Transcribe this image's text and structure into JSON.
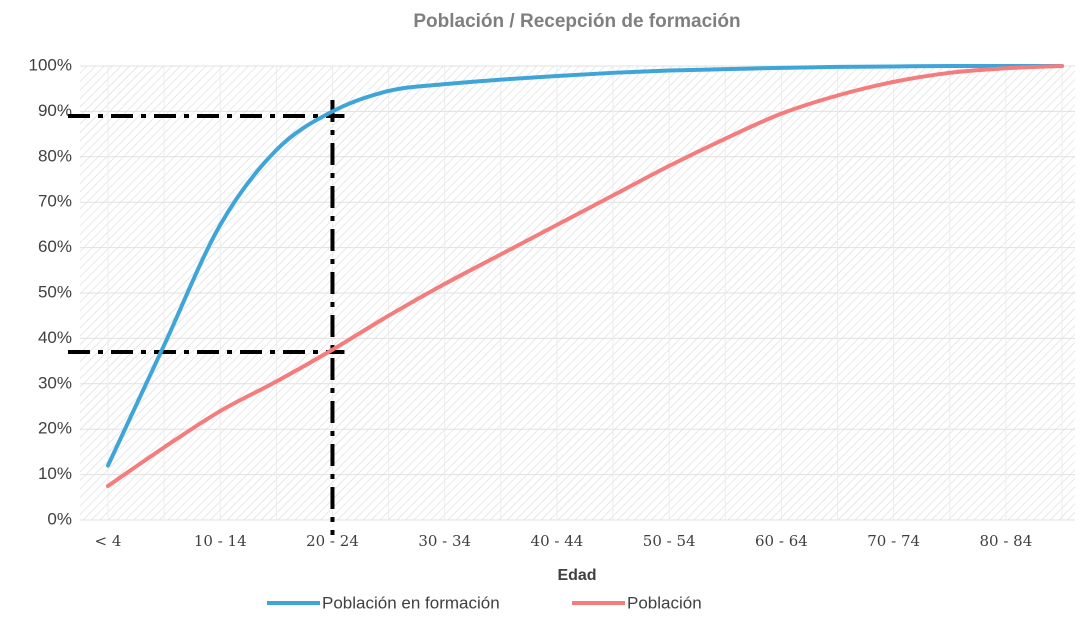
{
  "chart_data": {
    "type": "line",
    "title": "Población / Recepción de formación",
    "x_label": "Edad",
    "categories": [
      "< 4",
      null,
      "10 - 14",
      null,
      "20 - 24",
      null,
      "30 - 34",
      null,
      "40 - 44",
      null,
      "50 - 54",
      null,
      "60 - 64",
      null,
      "70 - 74",
      null,
      "80 - 84",
      null
    ],
    "series": [
      {
        "name": "Población en formación",
        "color": "#3fa5d9",
        "values": [
          12,
          38.5,
          65,
          81.5,
          90,
          94.5,
          96,
          97,
          97.8,
          98.5,
          99,
          99.3,
          99.6,
          99.8,
          99.9,
          100,
          100,
          100
        ]
      },
      {
        "name": "Población",
        "color": "#f47c7c",
        "values": [
          7.5,
          16,
          24,
          30.5,
          37.5,
          45,
          52,
          58.5,
          65,
          71.5,
          78,
          84,
          89.5,
          93.5,
          96.5,
          98.5,
          99.5,
          100
        ]
      }
    ],
    "ylim": [
      0,
      100
    ],
    "yticks": [
      {
        "value": 0,
        "label": "0%"
      },
      {
        "value": 10,
        "label": "10%"
      },
      {
        "value": 20,
        "label": "20%"
      },
      {
        "value": 30,
        "label": "30%"
      },
      {
        "value": 40,
        "label": "40%"
      },
      {
        "value": 50,
        "label": "50%"
      },
      {
        "value": 60,
        "label": "60%"
      },
      {
        "value": 70,
        "label": "70%"
      },
      {
        "value": 80,
        "label": "80%"
      },
      {
        "value": 90,
        "label": "90%"
      },
      {
        "value": 100,
        "label": "100%"
      }
    ],
    "grid": true,
    "legend": "bottom",
    "reference_lines": {
      "y": [
        89,
        37
      ],
      "x_category": 4
    }
  }
}
